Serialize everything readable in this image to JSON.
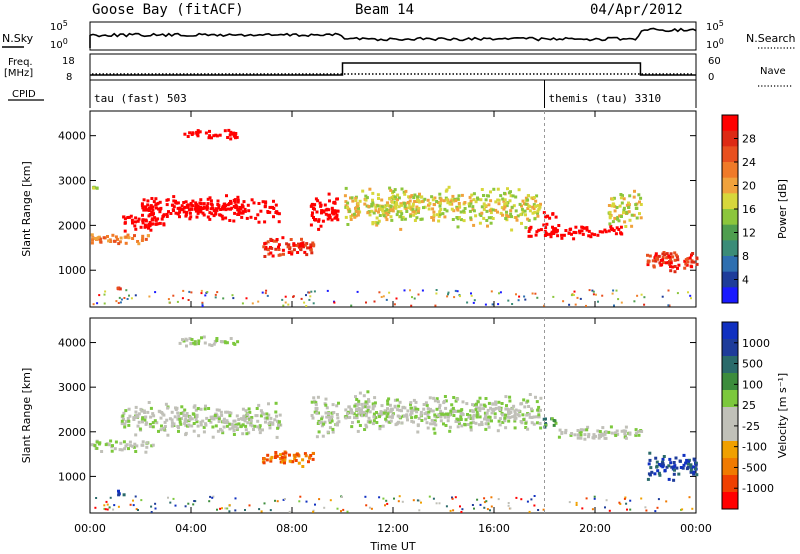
{
  "header": {
    "station": "Goose Bay (fitACF)",
    "beam": "Beam 14",
    "date": "04/Apr/2012"
  },
  "strip_labels": {
    "nsky": "N.Sky",
    "nsearch": "N.Search",
    "freq_1": "Freq.",
    "freq_2": "[MHz]",
    "nave": "Nave",
    "cpid": "CPID",
    "noise_ticks_left": [
      "10^5",
      "10^0"
    ],
    "noise_ticks_right": [
      "10^5",
      "10^0"
    ],
    "freq_ticks": [
      "18",
      "8"
    ],
    "nave_ticks": [
      "60",
      "0"
    ]
  },
  "cpid_modes": [
    {
      "label": "tau (fast) 503",
      "start_hour": 0
    },
    {
      "label": "themis (tau) 3310",
      "start_hour": 18
    }
  ],
  "colors": {
    "power": [
      "#1a1aff",
      "#1e3c9a",
      "#2e6fb0",
      "#3b8c78",
      "#4f9e4f",
      "#8cc63c",
      "#d7d73b",
      "#f0a23c",
      "#f07a28",
      "#e8501f",
      "#dd2a14",
      "#ff0000"
    ],
    "velocity": [
      "#1030c0",
      "#1e3c9a",
      "#2a6a6a",
      "#3c8c3c",
      "#7cc83c",
      "#c0c0b8",
      "#c0c0b8",
      "#f0a000",
      "#f07a00",
      "#f04000",
      "#ff0000"
    ],
    "ground_scatter": "#c0c0b8"
  },
  "chart_data": [
    {
      "type": "heatmap",
      "name_hint": "power",
      "ylabel": "Slant Range [km]",
      "xlabel": "Time UT",
      "x_ticks": [
        "00:00",
        "04:00",
        "08:00",
        "12:00",
        "16:00",
        "20:00",
        "00:00"
      ],
      "y_ticks": [
        "1000",
        "2000",
        "3000",
        "4000"
      ],
      "xlim_hours": [
        0,
        24
      ],
      "ylim_km": [
        180,
        4550
      ],
      "colorbar": {
        "label": "Power [dB]",
        "ticks": [
          "4",
          "8",
          "12",
          "16",
          "20",
          "24",
          "28"
        ],
        "range": [
          0,
          30
        ]
      },
      "scatter_regions": [
        {
          "t0": 0.0,
          "t1": 0.4,
          "r0": 2780,
          "r1": 3000,
          "level": 5
        },
        {
          "t0": 0.0,
          "t1": 2.5,
          "r0": 1550,
          "r1": 1900,
          "level": 8
        },
        {
          "t0": 1.2,
          "t1": 3.0,
          "r0": 1850,
          "r1": 2400,
          "level": 12
        },
        {
          "t0": 2.0,
          "t1": 7.5,
          "r0": 2050,
          "r1": 2750,
          "level": 16
        },
        {
          "t0": 3.5,
          "t1": 6.0,
          "r0": 2300,
          "r1": 2600,
          "level": 22
        },
        {
          "t0": 3.5,
          "t1": 5.8,
          "r0": 3900,
          "r1": 4200,
          "level": 12
        },
        {
          "t0": 6.8,
          "t1": 8.8,
          "r0": 1200,
          "r1": 1900,
          "level": 10
        },
        {
          "t0": 8.7,
          "t1": 9.8,
          "r0": 1800,
          "r1": 2900,
          "level": 12
        },
        {
          "t0": 10.0,
          "t1": 17.8,
          "r0": 1900,
          "r1": 3000,
          "level": 6
        },
        {
          "t0": 17.2,
          "t1": 21.0,
          "r0": 1700,
          "r1": 2100,
          "level": 12
        },
        {
          "t0": 17.9,
          "t1": 18.4,
          "r0": 2100,
          "r1": 2400,
          "level": 20
        },
        {
          "t0": 20.5,
          "t1": 21.8,
          "r0": 1900,
          "r1": 2900,
          "level": 6
        },
        {
          "t0": 22.0,
          "t1": 24.0,
          "r0": 900,
          "r1": 1600,
          "level": 10
        },
        {
          "t0": 1.0,
          "t1": 1.3,
          "r0": 550,
          "r1": 750,
          "level": 10
        }
      ]
    },
    {
      "type": "heatmap",
      "name_hint": "velocity",
      "ylabel": "Slant Range [km]",
      "xlabel": "Time UT",
      "x_ticks": [
        "00:00",
        "04:00",
        "08:00",
        "12:00",
        "16:00",
        "20:00",
        "00:00"
      ],
      "y_ticks": [
        "1000",
        "2000",
        "3000",
        "4000"
      ],
      "xlim_hours": [
        0,
        24
      ],
      "ylim_km": [
        180,
        4550
      ],
      "colorbar": {
        "label": "Velocity [m s⁻¹]",
        "ticks": [
          "1000",
          "500",
          "100",
          "25",
          "-25",
          "-100",
          "-500",
          "-1000"
        ],
        "range": [
          -1000,
          1000
        ]
      },
      "scatter_regions": [
        {
          "t0": 0.0,
          "t1": 2.5,
          "r0": 1550,
          "r1": 1900,
          "level": 5
        },
        {
          "t0": 1.2,
          "t1": 7.5,
          "r0": 1850,
          "r1": 2750,
          "level": 5
        },
        {
          "t0": 3.5,
          "t1": 5.8,
          "r0": 3900,
          "r1": 4200,
          "level": 5
        },
        {
          "t0": 6.8,
          "t1": 8.8,
          "r0": 1200,
          "r1": 1700,
          "level": 8
        },
        {
          "t0": 8.7,
          "t1": 9.8,
          "r0": 1800,
          "r1": 2900,
          "level": 5
        },
        {
          "t0": 10.0,
          "t1": 17.8,
          "r0": 1900,
          "r1": 3000,
          "level": 5
        },
        {
          "t0": 17.9,
          "t1": 18.4,
          "r0": 2000,
          "r1": 2450,
          "level": 3
        },
        {
          "t0": 18.4,
          "t1": 21.8,
          "r0": 1800,
          "r1": 2200,
          "level": 5
        },
        {
          "t0": 22.0,
          "t1": 24.0,
          "r0": 900,
          "r1": 1600,
          "level": 1
        },
        {
          "t0": 1.0,
          "t1": 1.3,
          "r0": 550,
          "r1": 750,
          "level": 1
        }
      ]
    }
  ]
}
